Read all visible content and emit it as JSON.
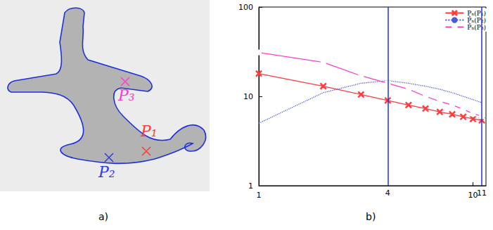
{
  "panel_a": {
    "caption": "a)",
    "points": [
      {
        "label": "P₁",
        "color": "#ff3b3b"
      },
      {
        "label": "P₂",
        "color": "#2f3fd8"
      },
      {
        "label": "P₃",
        "color": "#ff3bd0"
      }
    ]
  },
  "chart_data": {
    "type": "line",
    "caption": "b)",
    "log": true,
    "grid": false,
    "legend": "top right",
    "x": [
      1,
      2,
      3,
      4,
      5,
      6,
      7,
      8,
      9,
      10,
      11
    ],
    "series": [
      {
        "name": "Pₙ(P₁)",
        "color": "#ff3b3b",
        "marker": "x",
        "line_style": "solid",
        "values": [
          18,
          13,
          10.5,
          9,
          8,
          7.3,
          6.7,
          6.3,
          5.9,
          5.6,
          5.4
        ]
      },
      {
        "name": "P̃ₙ(P₂)",
        "color": "#4a5ae0",
        "marker": "none",
        "line_style": "dotted",
        "values": [
          5,
          11,
          14,
          15,
          14,
          13,
          12,
          11,
          10,
          9.2,
          8.5
        ]
      },
      {
        "name": "P̃ₙ(P₃)",
        "color": "#ff3bd0",
        "marker": "square",
        "line_style": "solid",
        "values": [
          31,
          24,
          17,
          14,
          12,
          10,
          8.8,
          8,
          7.2,
          6.4,
          6
        ]
      }
    ],
    "xlim": [
      1,
      11.5
    ],
    "xticks": [
      1,
      10
    ],
    "ylim": [
      1,
      100
    ],
    "yticks": [
      1,
      10,
      100
    ],
    "vlines": [
      4,
      11
    ]
  }
}
